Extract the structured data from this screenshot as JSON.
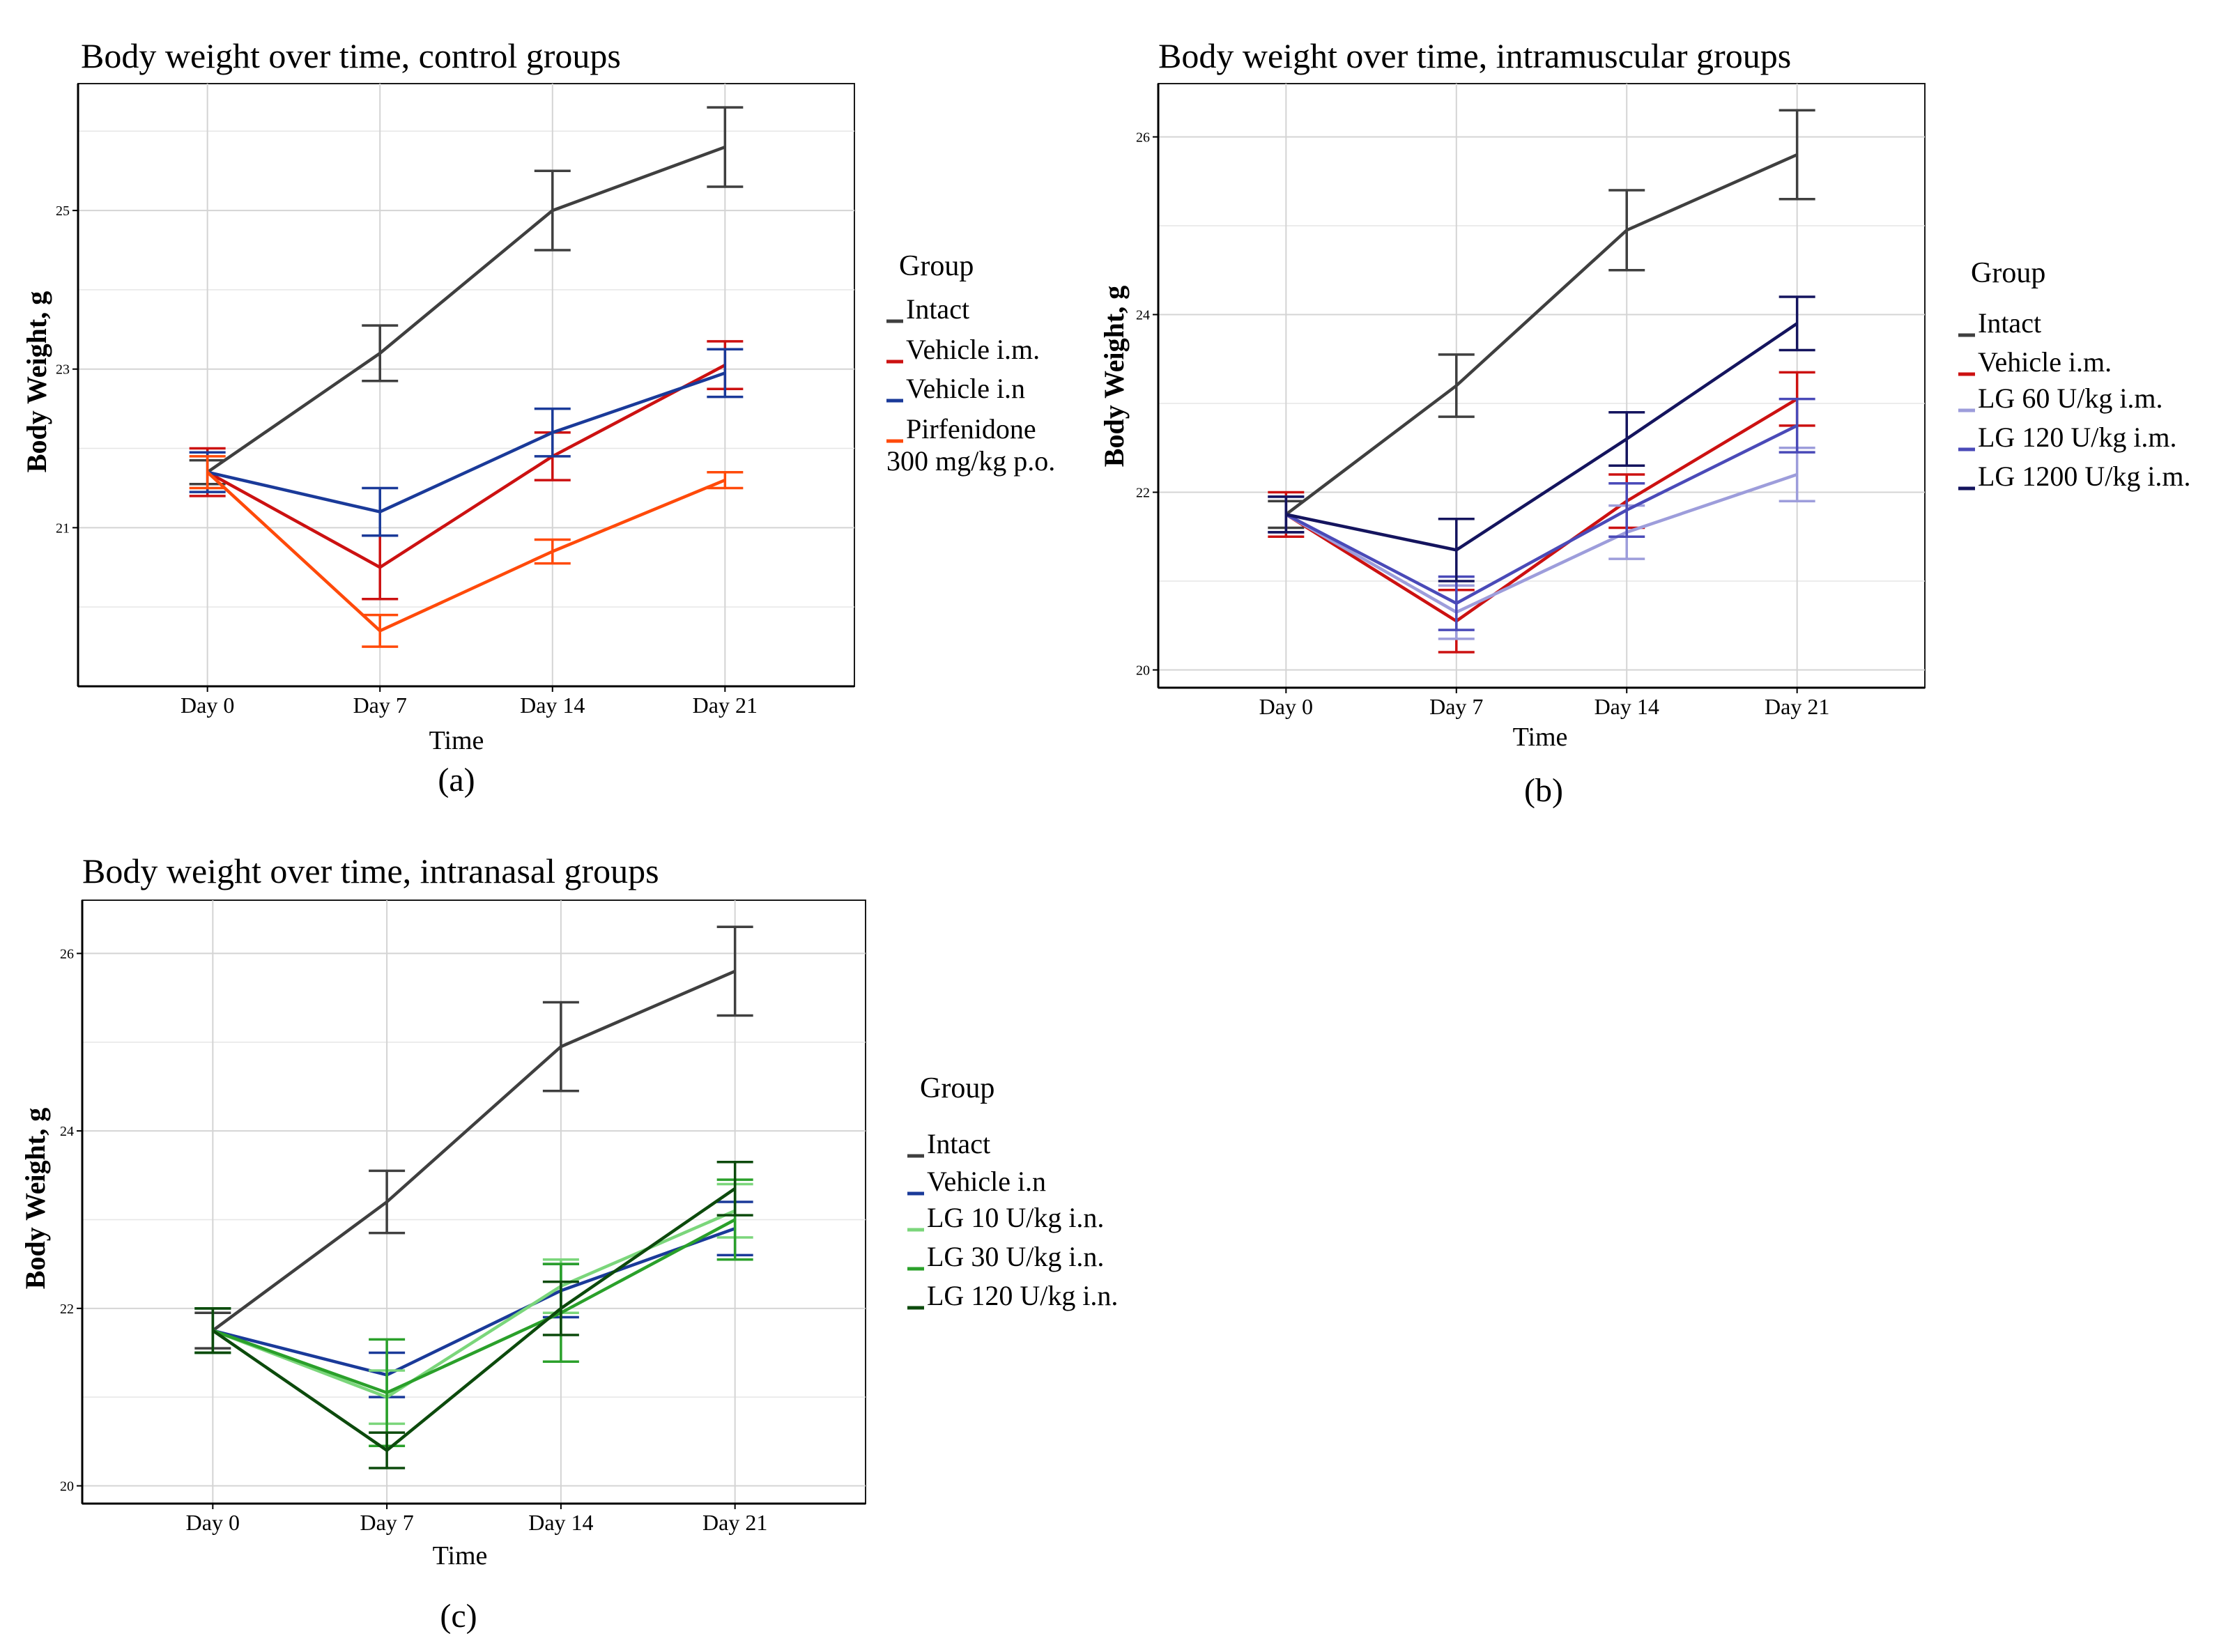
{
  "chart_data": [
    {
      "panel_label": "(a)",
      "type": "line",
      "title": "Body weight over time, control groups",
      "xlabel": "Time",
      "ylabel": "Body Weight, g",
      "categories": [
        "Day 0",
        "Day 7",
        "Day 14",
        "Day 21"
      ],
      "ylim": [
        19.0,
        26.6
      ],
      "yticks": [
        21,
        23,
        25
      ],
      "grid": true,
      "legend": {
        "title": "Group",
        "position": "right"
      },
      "series": [
        {
          "name": "Intact",
          "color": "#3f3f3f",
          "values": [
            21.7,
            23.2,
            25.0,
            25.8
          ],
          "err": [
            0.15,
            0.35,
            0.5,
            0.5
          ]
        },
        {
          "name": "Vehicle i.m.",
          "color": "#cc1111",
          "values": [
            21.7,
            20.5,
            21.9,
            23.05
          ],
          "err": [
            0.3,
            0.4,
            0.3,
            0.3
          ]
        },
        {
          "name": "Vehicle i.n",
          "color": "#1a3a99",
          "values": [
            21.7,
            21.2,
            22.2,
            22.95
          ],
          "err": [
            0.25,
            0.3,
            0.3,
            0.3
          ]
        },
        {
          "name": "Pirfenidone\n300 mg/kg p.o.",
          "color": "#ff4a0a",
          "values": [
            21.7,
            19.7,
            20.7,
            21.6
          ],
          "err": [
            0.2,
            0.2,
            0.15,
            0.1
          ]
        }
      ]
    },
    {
      "panel_label": "(b)",
      "type": "line",
      "title": "Body weight over time, intramuscular groups",
      "xlabel": "Time",
      "ylabel": "Body Weight, g",
      "categories": [
        "Day 0",
        "Day 7",
        "Day 14",
        "Day 21"
      ],
      "ylim": [
        19.8,
        26.6
      ],
      "yticks": [
        20,
        22,
        24,
        26
      ],
      "grid": true,
      "legend": {
        "title": "Group",
        "position": "right"
      },
      "series": [
        {
          "name": "Intact",
          "color": "#3f3f3f",
          "values": [
            21.75,
            23.2,
            24.95,
            25.8
          ],
          "err": [
            0.15,
            0.35,
            0.45,
            0.5
          ]
        },
        {
          "name": "Vehicle i.m.",
          "color": "#cc1111",
          "values": [
            21.75,
            20.55,
            21.9,
            23.05
          ],
          "err": [
            0.25,
            0.35,
            0.3,
            0.3
          ]
        },
        {
          "name": "LG 60 U/kg i.m.",
          "color": "#9d9ddb",
          "values": [
            21.75,
            20.65,
            21.55,
            22.2
          ],
          "err": [
            0.2,
            0.3,
            0.3,
            0.3
          ]
        },
        {
          "name": "LG 120 U/kg i.m.",
          "color": "#4a4ab8",
          "values": [
            21.75,
            20.75,
            21.8,
            22.75
          ],
          "err": [
            0.2,
            0.3,
            0.3,
            0.3
          ]
        },
        {
          "name": "LG 1200 U/kg i.m.",
          "color": "#14145e",
          "values": [
            21.75,
            21.35,
            22.6,
            23.9
          ],
          "err": [
            0.2,
            0.35,
            0.3,
            0.3
          ]
        }
      ]
    },
    {
      "panel_label": "(c)",
      "type": "line",
      "title": "Body weight over time, intranasal groups",
      "xlabel": "Time",
      "ylabel": "Body Weight, g",
      "categories": [
        "Day 0",
        "Day 7",
        "Day 14",
        "Day 21"
      ],
      "ylim": [
        19.8,
        26.6
      ],
      "yticks": [
        20,
        22,
        24,
        26
      ],
      "grid": true,
      "legend": {
        "title": "Group",
        "position": "right"
      },
      "series": [
        {
          "name": "Intact",
          "color": "#3f3f3f",
          "values": [
            21.75,
            23.2,
            24.95,
            25.8
          ],
          "err": [
            0.2,
            0.35,
            0.5,
            0.5
          ]
        },
        {
          "name": "Vehicle i.n",
          "color": "#1a3a99",
          "values": [
            21.75,
            21.25,
            22.2,
            22.9
          ],
          "err": [
            0.25,
            0.25,
            0.3,
            0.3
          ]
        },
        {
          "name": "LG 10 U/kg i.n.",
          "color": "#7bd67b",
          "values": [
            21.75,
            21.0,
            22.25,
            23.1
          ],
          "err": [
            0.25,
            0.3,
            0.3,
            0.3
          ]
        },
        {
          "name": "LG 30 U/kg i.n.",
          "color": "#2aa02a",
          "values": [
            21.75,
            21.05,
            21.95,
            23.0
          ],
          "err": [
            0.25,
            0.6,
            0.55,
            0.45
          ]
        },
        {
          "name": "LG 120 U/kg i.n.",
          "color": "#0c4a0c",
          "values": [
            21.75,
            20.4,
            22.0,
            23.35
          ],
          "err": [
            0.25,
            0.2,
            0.3,
            0.3
          ]
        }
      ]
    }
  ]
}
